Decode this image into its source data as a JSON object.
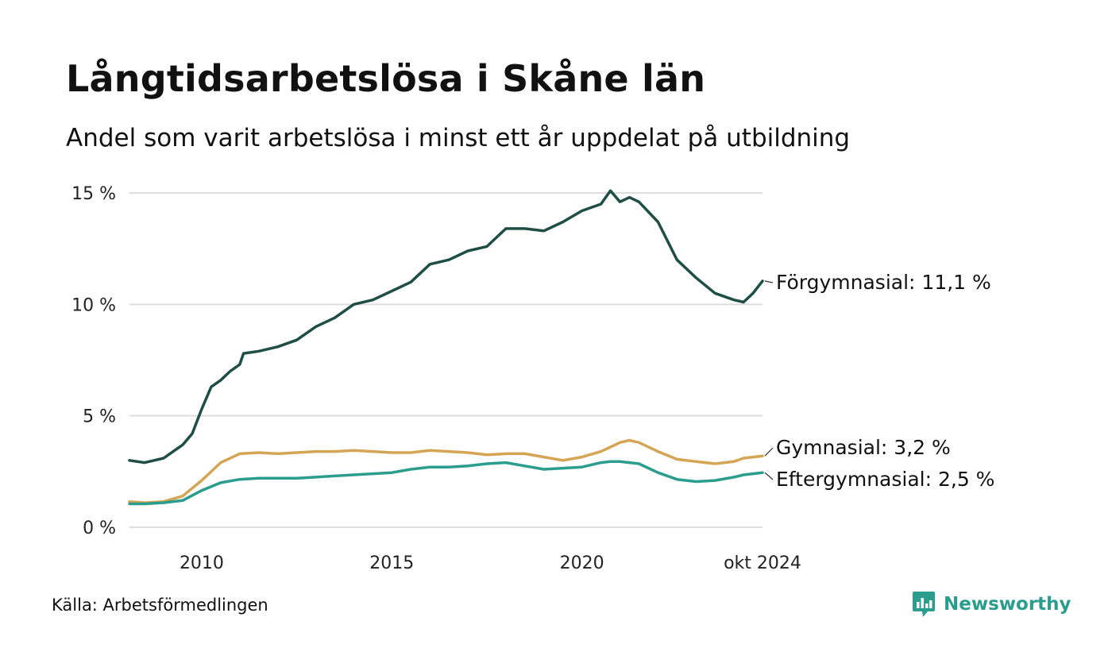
{
  "title": "Långtidsarbetslösa i Skåne län",
  "subtitle": "Andel som varit arbetslösa i minst ett år uppdelat på utbildning",
  "source": "Källa: Arbetsförmedlingen",
  "brand": {
    "name": "Newsworthy",
    "icon": "newsworthy-logo-icon",
    "color": "#2a9d8f"
  },
  "chart_data": {
    "type": "line",
    "x_unit": "year",
    "xlim": [
      2008.1,
      2024.75
    ],
    "ylim": [
      0,
      15
    ],
    "grid": true,
    "legend": "direct labels at right",
    "y_ticks": [
      {
        "value": 0,
        "label": "0 %"
      },
      {
        "value": 5,
        "label": "5 %"
      },
      {
        "value": 10,
        "label": "10 %"
      },
      {
        "value": 15,
        "label": "15 %"
      }
    ],
    "x_ticks": [
      {
        "value": 2010,
        "label": "2010"
      },
      {
        "value": 2015,
        "label": "2015"
      },
      {
        "value": 2020,
        "label": "2020"
      },
      {
        "value": 2024.75,
        "label": "okt 2024"
      }
    ],
    "series": [
      {
        "name": "Förgymnasial",
        "end_label": "Förgymnasial: 11,1 %",
        "color": "#1f4e45",
        "x": [
          2008.1,
          2008.5,
          2008.75,
          2009,
          2009.25,
          2009.5,
          2009.75,
          2010,
          2010.25,
          2010.5,
          2010.75,
          2011,
          2011.1,
          2011.5,
          2012,
          2012.5,
          2013,
          2013.5,
          2014,
          2014.5,
          2015,
          2015.5,
          2016,
          2016.5,
          2017,
          2017.5,
          2018,
          2018.5,
          2019,
          2019.5,
          2020,
          2020.5,
          2020.75,
          2021,
          2021.25,
          2021.5,
          2022,
          2022.5,
          2023,
          2023.5,
          2024,
          2024.25,
          2024.5,
          2024.75
        ],
        "y": [
          3.0,
          2.9,
          3.0,
          3.1,
          3.4,
          3.7,
          4.2,
          5.3,
          6.3,
          6.6,
          7.0,
          7.3,
          7.8,
          7.9,
          8.1,
          8.4,
          9.0,
          9.4,
          10.0,
          10.2,
          10.6,
          11.0,
          11.8,
          12.0,
          12.4,
          12.6,
          13.4,
          13.4,
          13.3,
          13.7,
          14.2,
          14.5,
          15.1,
          14.6,
          14.8,
          14.6,
          13.7,
          12.0,
          11.2,
          10.5,
          10.2,
          10.1,
          10.5,
          11.05
        ]
      },
      {
        "name": "Gymnasial",
        "end_label": "Gymnasial:  3,2 %",
        "color": "#d4a554",
        "x": [
          2008.1,
          2008.5,
          2009,
          2009.5,
          2010,
          2010.5,
          2011,
          2011.5,
          2012,
          2012.5,
          2013,
          2013.5,
          2014,
          2014.5,
          2015,
          2015.5,
          2016,
          2016.5,
          2017,
          2017.5,
          2018,
          2018.5,
          2019,
          2019.5,
          2020,
          2020.5,
          2020.75,
          2021,
          2021.25,
          2021.5,
          2022,
          2022.5,
          2023,
          2023.5,
          2024,
          2024.25,
          2024.5,
          2024.75
        ],
        "y": [
          1.15,
          1.1,
          1.15,
          1.4,
          2.1,
          2.9,
          3.3,
          3.35,
          3.3,
          3.35,
          3.4,
          3.4,
          3.45,
          3.4,
          3.35,
          3.35,
          3.45,
          3.4,
          3.35,
          3.25,
          3.3,
          3.3,
          3.15,
          3.0,
          3.15,
          3.4,
          3.6,
          3.8,
          3.9,
          3.8,
          3.4,
          3.05,
          2.95,
          2.85,
          2.95,
          3.1,
          3.15,
          3.2
        ]
      },
      {
        "name": "Eftergymnasial",
        "end_label": "Eftergymnasial:  2,5 %",
        "color": "#2a9d8f",
        "x": [
          2008.1,
          2008.5,
          2009,
          2009.5,
          2010,
          2010.5,
          2011,
          2011.5,
          2012,
          2012.5,
          2013,
          2013.5,
          2014,
          2014.5,
          2015,
          2015.5,
          2016,
          2016.5,
          2017,
          2017.5,
          2018,
          2018.5,
          2019,
          2019.5,
          2020,
          2020.5,
          2020.75,
          2021,
          2021.5,
          2022,
          2022.5,
          2023,
          2023.5,
          2024,
          2024.25,
          2024.5,
          2024.75
        ],
        "y": [
          1.05,
          1.05,
          1.1,
          1.2,
          1.65,
          2.0,
          2.15,
          2.2,
          2.2,
          2.2,
          2.25,
          2.3,
          2.35,
          2.4,
          2.45,
          2.6,
          2.7,
          2.7,
          2.75,
          2.85,
          2.9,
          2.75,
          2.6,
          2.65,
          2.7,
          2.9,
          2.95,
          2.95,
          2.85,
          2.45,
          2.15,
          2.05,
          2.1,
          2.25,
          2.35,
          2.4,
          2.45
        ]
      }
    ]
  }
}
